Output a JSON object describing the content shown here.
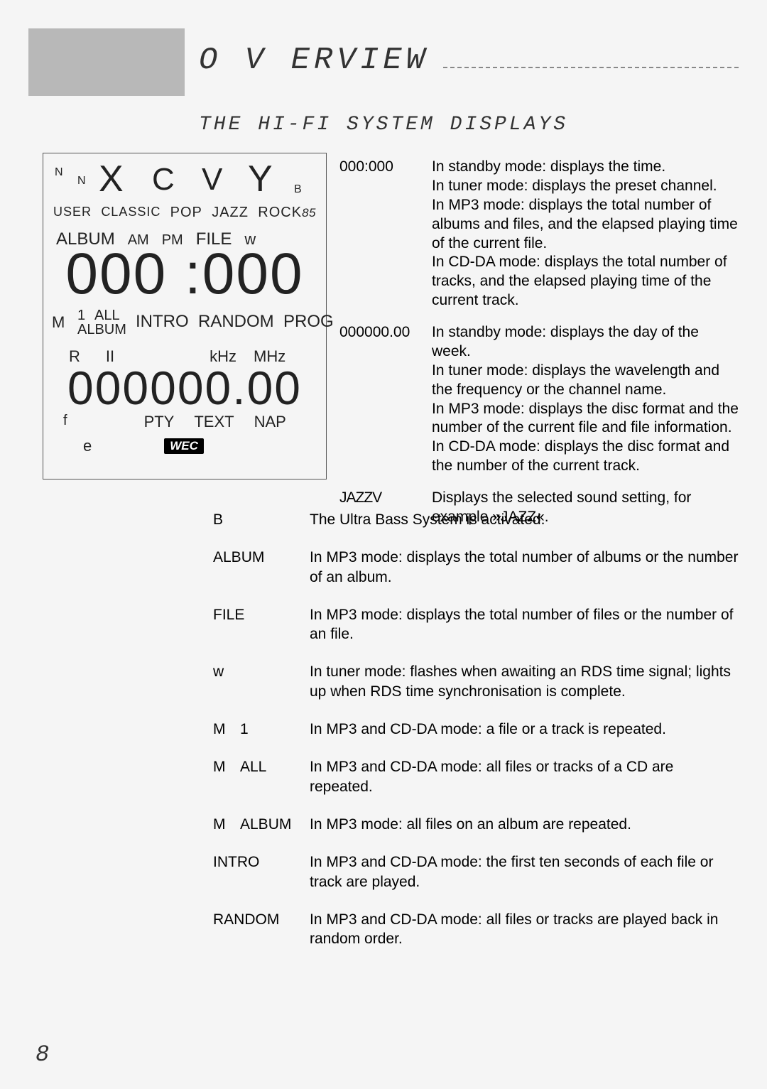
{
  "header": {
    "title": "O V ERVIEW",
    "subtitle": "THE HI-FI SYSTEM DISPLAYS"
  },
  "display": {
    "n1": "N",
    "n2": "N",
    "x": "X",
    "c": "C",
    "v": "V",
    "y": "Y",
    "b": "B",
    "user": "USER",
    "classic": "CLASSIC",
    "pop": "POP",
    "jazz": "JAZZ",
    "rock": "ROCK",
    "rocksuf": "85",
    "album": "ALBUM",
    "am": "AM",
    "pm": "PM",
    "file": "FILE",
    "w": "w",
    "big1": "000 :000",
    "m": "M",
    "one": "1",
    "all": "ALL",
    "album2": "ALBUM",
    "intro": "INTRO",
    "random": "RANDOM",
    "prog": "PROG",
    "r": "R",
    "bars": "II",
    "khz": "kHz",
    "mhz": "MHz",
    "big2": "000000.00",
    "f": "f",
    "pty": "PTY",
    "text": "TEXT",
    "nap": "NAP",
    "e": "e",
    "wec": "WEC"
  },
  "desc": [
    {
      "label": "000:000",
      "text": "In standby mode: displays the time.\nIn tuner mode: displays the preset channel.\nIn MP3 mode: displays the total number of albums and files, and the elapsed playing time of the current file.\nIn CD-DA mode: displays the total number of tracks, and the elapsed playing time of the current track."
    },
    {
      "label": "000000.00",
      "text": "In standby mode: displays the day of the week.\nIn tuner mode: displays the wavelength and the frequency or the channel name.\nIn MP3 mode: displays the disc format and the number of the current file and file information.\nIn CD-DA mode: displays the disc format and the number of the current track."
    },
    {
      "label": "JAZZV",
      "text": "Displays the selected sound setting, for example »JAZZ«."
    }
  ],
  "list2": [
    {
      "label": "B",
      "text": "The Ultra Bass System is activated."
    },
    {
      "label": "ALBUM",
      "text": "In MP3 mode: displays the total number of albums or the number of an album."
    },
    {
      "label": "FILE",
      "text": "In MP3 mode: displays the total number of files or the number of an file."
    },
    {
      "label": "w",
      "text": "In tuner mode: flashes when awaiting an RDS time signal; lights up when RDS time synchronisation is complete."
    },
    {
      "label": "M   1",
      "text": "In MP3 and CD-DA mode: a file or a track is repeated."
    },
    {
      "label": "M   ALL",
      "text": "In MP3 and CD-DA mode: all files or tracks of a CD are repeated."
    },
    {
      "label": "M   ALBUM",
      "text": "In MP3 mode: all files on an album are repeated."
    },
    {
      "label": "INTRO",
      "text": "In MP3 and CD-DA mode: the first ten seconds of each file or track are played."
    },
    {
      "label": "RANDOM",
      "text": "In MP3 and CD-DA mode: all files or tracks are played back in random order."
    }
  ],
  "page": "8"
}
